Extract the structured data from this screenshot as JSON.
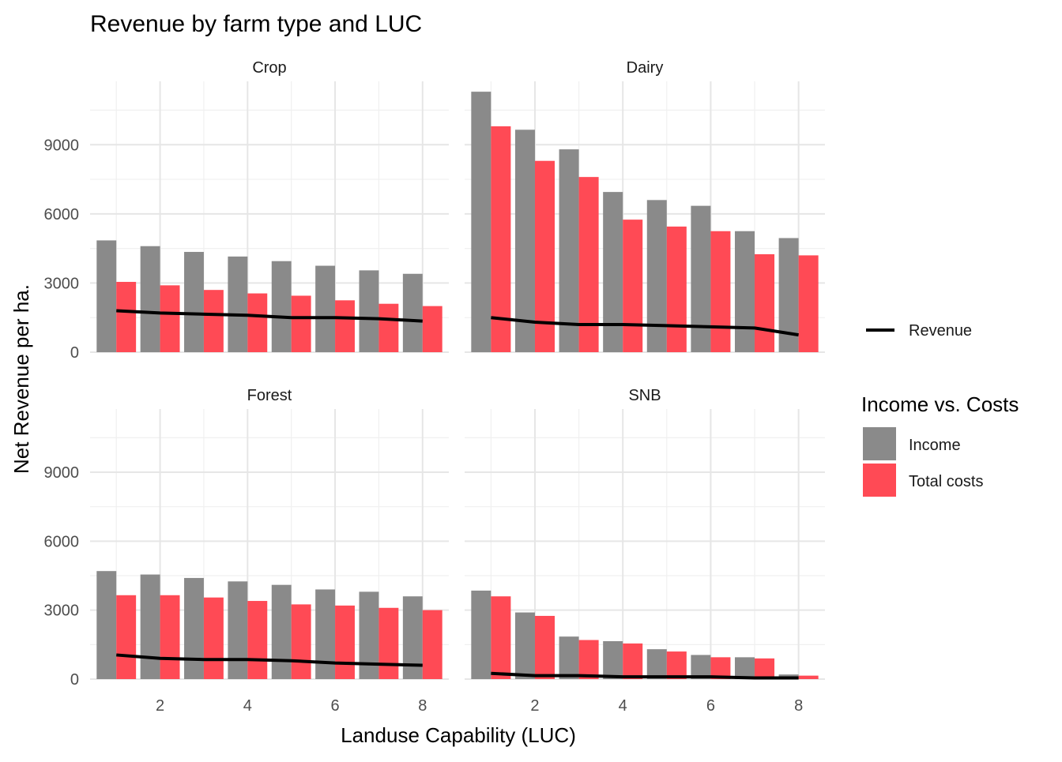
{
  "chart_data": {
    "type": "bar",
    "title": "Revenue by farm type and LUC",
    "xlabel": "Landuse Capability (LUC)",
    "ylabel": "Net Revenue per ha.",
    "x_ticks": [
      2,
      4,
      6,
      8
    ],
    "y_ticks": [
      0,
      3000,
      6000,
      9000
    ],
    "ylim": [
      0,
      11750
    ],
    "xlim": [
      0.4,
      8.6
    ],
    "grid": true,
    "legend_line": {
      "label": "Revenue",
      "color": "#000000"
    },
    "legend_fill": {
      "title": "Income vs. Costs",
      "items": [
        {
          "label": "Income",
          "color": "#8a8a8a"
        },
        {
          "label": "Total costs",
          "color": "#ff4a55"
        }
      ]
    },
    "categories": [
      1,
      2,
      3,
      4,
      5,
      6,
      7,
      8
    ],
    "panels": [
      {
        "name": "Crop",
        "series": [
          {
            "name": "Income",
            "values": [
              4850,
              4600,
              4350,
              4150,
              3950,
              3750,
              3550,
              3400
            ]
          },
          {
            "name": "Total costs",
            "values": [
              3050,
              2900,
              2700,
              2550,
              2450,
              2250,
              2100,
              2000
            ]
          },
          {
            "name": "Revenue",
            "values": [
              1800,
              1700,
              1650,
              1600,
              1500,
              1500,
              1450,
              1350
            ]
          }
        ]
      },
      {
        "name": "Dairy",
        "series": [
          {
            "name": "Income",
            "values": [
              11300,
              9650,
              8800,
              6950,
              6600,
              6350,
              5250,
              4950
            ]
          },
          {
            "name": "Total costs",
            "values": [
              9800,
              8300,
              7600,
              5750,
              5450,
              5250,
              4250,
              4200
            ]
          },
          {
            "name": "Revenue",
            "values": [
              1500,
              1300,
              1200,
              1200,
              1150,
              1100,
              1050,
              750
            ]
          }
        ]
      },
      {
        "name": "Forest",
        "series": [
          {
            "name": "Income",
            "values": [
              4700,
              4550,
              4400,
              4250,
              4100,
              3900,
              3800,
              3600
            ]
          },
          {
            "name": "Total costs",
            "values": [
              3650,
              3650,
              3550,
              3400,
              3250,
              3200,
              3100,
              3000
            ]
          },
          {
            "name": "Revenue",
            "values": [
              1050,
              900,
              850,
              850,
              800,
              700,
              650,
              600
            ]
          }
        ]
      },
      {
        "name": "SNB",
        "series": [
          {
            "name": "Income",
            "values": [
              3850,
              2900,
              1850,
              1650,
              1300,
              1050,
              950,
              200
            ]
          },
          {
            "name": "Total costs",
            "values": [
              3600,
              2750,
              1700,
              1550,
              1200,
              950,
              900,
              150
            ]
          },
          {
            "name": "Revenue",
            "values": [
              250,
              150,
              150,
              100,
              100,
              100,
              50,
              50
            ]
          }
        ]
      }
    ]
  }
}
